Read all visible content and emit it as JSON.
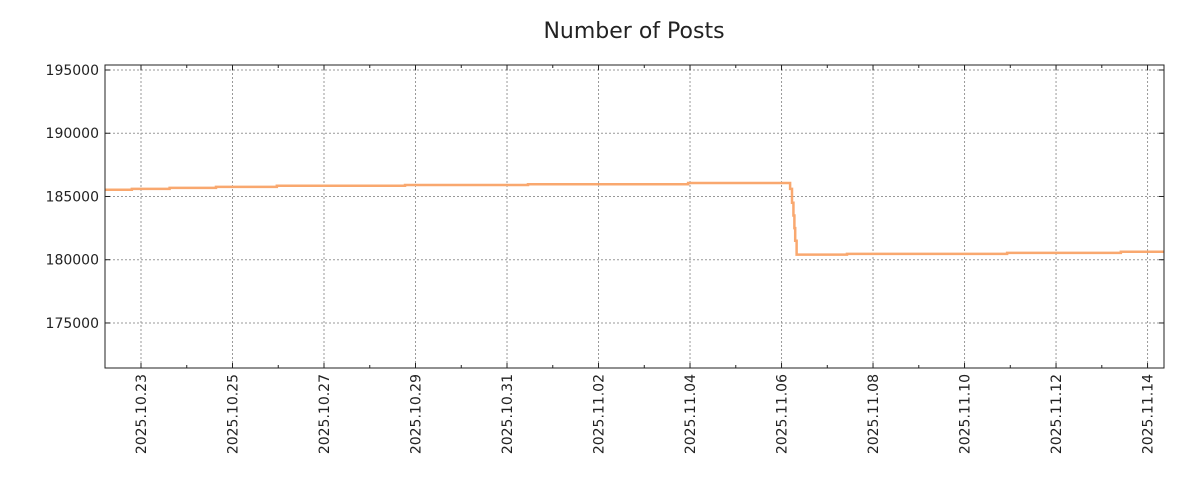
{
  "chart_data": {
    "type": "line",
    "title": "Number of Posts",
    "xlabel": "",
    "ylabel": "",
    "step": "post",
    "grid": true,
    "legend": "none",
    "line_color": "#f9a86f",
    "xlim": [
      "2025-10-22T05:07",
      "2025-11-14T08:38"
    ],
    "ylim": [
      171440,
      195395
    ],
    "x_ticks": [
      "2025.10.23",
      "2025.10.25",
      "2025.10.27",
      "2025.10.29",
      "2025.10.31",
      "2025.11.02",
      "2025.11.04",
      "2025.11.06",
      "2025.11.08",
      "2025.11.10",
      "2025.11.12",
      "2025.11.14"
    ],
    "x_tick_dates": [
      "2025-10-23T00:00",
      "2025-10-25T00:00",
      "2025-10-27T00:00",
      "2025-10-29T00:00",
      "2025-10-31T00:00",
      "2025-11-02T00:00",
      "2025-11-04T00:00",
      "2025-11-06T00:00",
      "2025-11-08T00:00",
      "2025-11-10T00:00",
      "2025-11-12T00:00",
      "2025-11-14T00:00"
    ],
    "y_ticks": [
      "175000",
      "180000",
      "185000",
      "190000",
      "195000"
    ],
    "y_tick_values": [
      175000,
      180000,
      185000,
      190000,
      195000
    ],
    "series": [
      {
        "name": "Number of Posts",
        "x": [
          "2025-10-22T05:07",
          "2025-10-22T19:12",
          "2025-10-23T15:00",
          "2025-10-24T15:20",
          "2025-10-25T23:15",
          "2025-10-28T18:30",
          "2025-10-31T11:00",
          "2025-11-03T23:00",
          "2025-11-06T04:30",
          "2025-11-06T05:30",
          "2025-11-06T06:15",
          "2025-11-06T06:45",
          "2025-11-06T07:10",
          "2025-11-06T07:55",
          "2025-11-06T08:50",
          "2025-11-07T10:20",
          "2025-11-10T22:20",
          "2025-11-13T10:00",
          "2025-11-14T08:38"
        ],
        "y": [
          185530,
          185600,
          185680,
          185760,
          185850,
          185910,
          185970,
          186070,
          185600,
          184500,
          183500,
          182500,
          181500,
          180400,
          180400,
          180460,
          180540,
          180630,
          180630
        ]
      }
    ]
  }
}
